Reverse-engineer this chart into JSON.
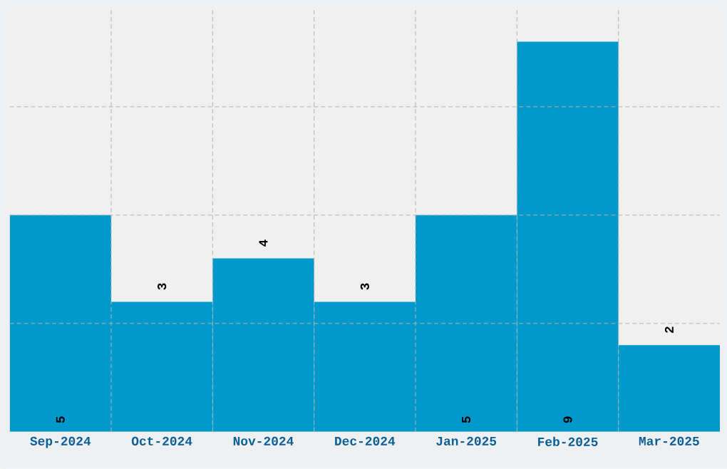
{
  "chart_data": {
    "type": "bar",
    "categories": [
      "Sep-2024",
      "Oct-2024",
      "Nov-2024",
      "Dec-2024",
      "Jan-2025",
      "Feb-2025",
      "Mar-2025"
    ],
    "values": [
      5,
      3,
      4,
      3,
      5,
      9,
      2
    ],
    "color": "#0099cc",
    "ylim": [
      0,
      9.8
    ],
    "yticks": [
      {
        "value": 2.5,
        "label": null
      },
      {
        "value": 5,
        "label": null
      },
      {
        "value": 7.5,
        "label": null
      }
    ],
    "tick_labels": "x",
    "grid": true,
    "data_labels": true
  }
}
